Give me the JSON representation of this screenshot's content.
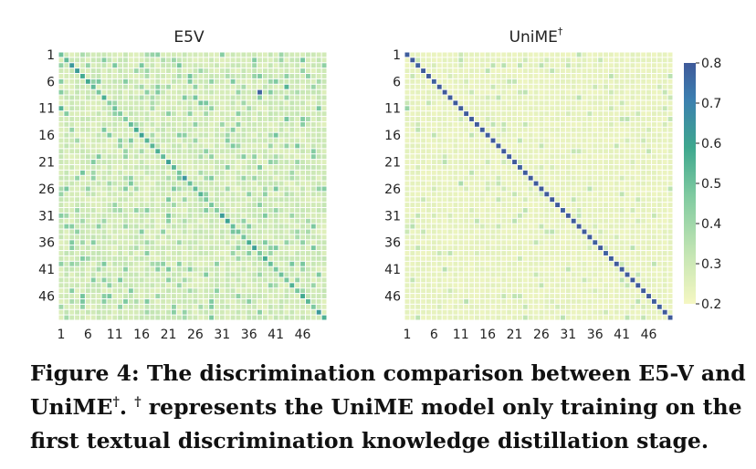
{
  "chart_data": [
    {
      "type": "heatmap",
      "title": "E5V",
      "n": 50,
      "x_tick_labels": [
        "1",
        "6",
        "11",
        "16",
        "21",
        "26",
        "31",
        "36",
        "41",
        "46"
      ],
      "y_tick_labels": [
        "1",
        "6",
        "11",
        "16",
        "21",
        "26",
        "31",
        "36",
        "41",
        "46"
      ],
      "tick_values": [
        1,
        6,
        11,
        16,
        21,
        26,
        31,
        36,
        41,
        46
      ],
      "value_range": [
        0.2,
        0.8
      ],
      "diagonal_value": 0.55,
      "off_diagonal_typical": 0.25,
      "notable_cells": [
        {
          "row": 6,
          "col": 1,
          "value": 0.45
        },
        {
          "row": 11,
          "col": 1,
          "value": 0.55
        },
        {
          "row": 8,
          "col": 38,
          "value": 0.78
        },
        {
          "row": 7,
          "col": 43,
          "value": 0.55
        },
        {
          "row": 3,
          "col": 11,
          "value": 0.48
        },
        {
          "row": 1,
          "col": 18,
          "value": 0.42
        },
        {
          "row": 20,
          "col": 48,
          "value": 0.45
        },
        {
          "row": 41,
          "col": 19,
          "value": 0.45
        },
        {
          "row": 47,
          "col": 5,
          "value": 0.48
        },
        {
          "row": 44,
          "col": 23,
          "value": 0.42
        },
        {
          "row": 26,
          "col": 15,
          "value": 0.4
        }
      ]
    },
    {
      "type": "heatmap",
      "title": "UniME",
      "title_sup": "†",
      "n": 50,
      "x_tick_labels": [
        "1",
        "6",
        "11",
        "16",
        "21",
        "26",
        "31",
        "36",
        "41",
        "46"
      ],
      "y_tick_labels": [
        "1",
        "6",
        "11",
        "16",
        "21",
        "26",
        "31",
        "36",
        "41",
        "46"
      ],
      "tick_values": [
        1,
        6,
        11,
        16,
        21,
        26,
        31,
        36,
        41,
        46
      ],
      "value_range": [
        0.2,
        0.8
      ],
      "diagonal_value": 0.8,
      "off_diagonal_typical": 0.22,
      "notable_cells": [
        {
          "row": 11,
          "col": 1,
          "value": 0.42
        },
        {
          "row": 25,
          "col": 11,
          "value": 0.38
        },
        {
          "row": 41,
          "col": 8,
          "value": 0.35
        },
        {
          "row": 47,
          "col": 12,
          "value": 0.35
        },
        {
          "row": 36,
          "col": 25,
          "value": 0.33
        },
        {
          "row": 2,
          "col": 37,
          "value": 0.32
        },
        {
          "row": 33,
          "col": 18,
          "value": 0.32
        }
      ]
    }
  ],
  "colorbar": {
    "min": 0.2,
    "max": 0.8,
    "ticks": [
      "0.8",
      "0.7",
      "0.6",
      "0.5",
      "0.4",
      "0.3",
      "0.2"
    ],
    "colors": [
      "#f5f7c2",
      "#c6e6b4",
      "#7fcaa0",
      "#3ea78e",
      "#3c7fb0",
      "#3f5a9a"
    ]
  },
  "caption": {
    "line1": "Figure 4: The discrimination comparison between E5-V and",
    "line2_a": "UniME",
    "line2_sup": "†",
    "line2_b": ". ",
    "line2_sup2": "†",
    "line2_c": " represents the UniME model only training on the",
    "line3": "first textual discrimination knowledge distillation stage."
  }
}
